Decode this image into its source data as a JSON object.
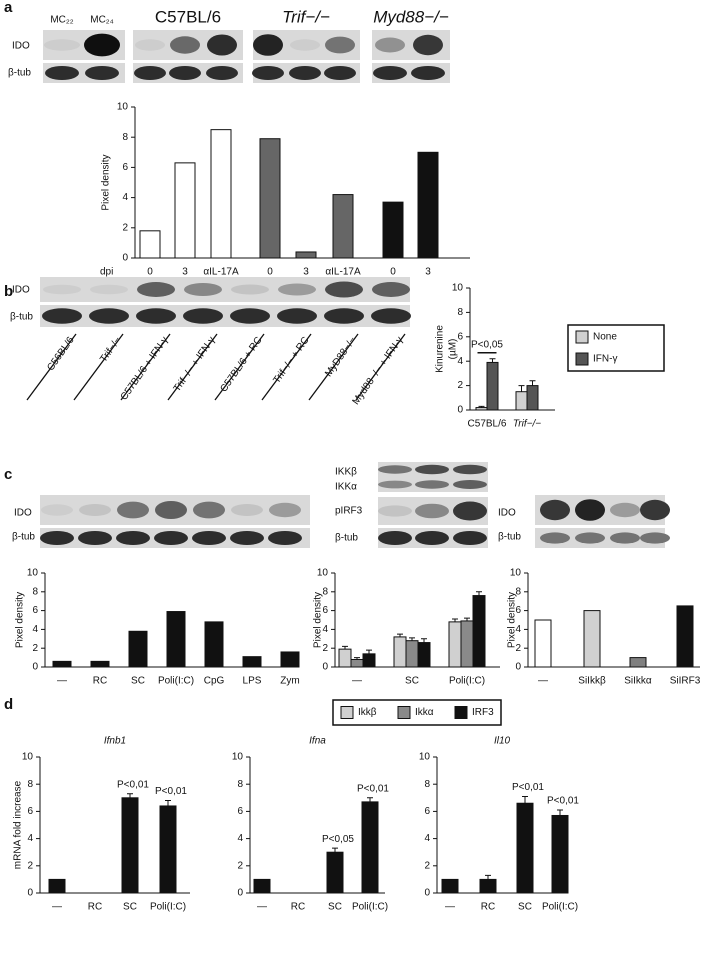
{
  "panels": [
    "a",
    "b",
    "c",
    "d"
  ],
  "blots": {
    "a": {
      "lanes": [
        "MC₂₂",
        "MC₂₄"
      ],
      "rows": [
        "IDO",
        "β-tub"
      ]
    },
    "b": {
      "rows": [
        "IDO",
        "β-tub"
      ],
      "lanes": [
        "C56BL/6",
        "Trif−/−",
        "C57BL/6 + IFN-γ",
        "Trif−/− + IFN-γ",
        "C57BL/6 + RC",
        "Trif−/− + RC",
        "MyD88−/−",
        "Myd88−/− + IFN-γ"
      ]
    },
    "c": {
      "ido_blot": [
        "IDO",
        "β-tub"
      ],
      "ikk_blot": [
        "IKKβ",
        "IKKα",
        "pIRF3",
        "β-tub"
      ],
      "si_blot": [
        "IDO",
        "β-tub"
      ]
    }
  },
  "chart_data": [
    {
      "type": "bar",
      "ylabel": "Pixel density",
      "xlabel": "dpi",
      "categories": [
        "0",
        "3",
        "αIL-17A",
        "0",
        "3",
        "αIL-17A",
        "0",
        "3"
      ],
      "series": [
        {
          "name": "C57BL/6",
          "color": "#ffffff",
          "values": [
            1.8,
            6.3,
            8.5,
            null,
            null,
            null,
            null,
            null
          ]
        },
        {
          "name": "Trif−/−",
          "color": "#666666",
          "values": [
            null,
            null,
            null,
            7.9,
            0.4,
            4.2,
            null,
            null
          ]
        },
        {
          "name": "Myd88−/−",
          "color": "#111111",
          "values": [
            null,
            null,
            null,
            null,
            null,
            null,
            3.7,
            7.0
          ]
        }
      ],
      "ylim": [
        0,
        10
      ],
      "yticks": [
        0,
        2,
        4,
        6,
        8,
        10
      ]
    },
    {
      "type": "bar",
      "ylabel": "Kinurenine",
      "ylabel_unit": "(µM)",
      "categories": [
        "C57BL/6",
        "Trif−/−"
      ],
      "series": [
        {
          "name": "None",
          "color": "#d0d0d0",
          "values": [
            0.2,
            1.5
          ],
          "errors": [
            0.1,
            0.5
          ]
        },
        {
          "name": "IFN-γ",
          "color": "#555555",
          "values": [
            3.9,
            2.0
          ],
          "errors": [
            0.3,
            0.4
          ]
        }
      ],
      "annotation": "P<0,05",
      "legend": "right",
      "ylim": [
        0,
        10
      ],
      "yticks": [
        0,
        2,
        4,
        6,
        8,
        10
      ]
    },
    {
      "type": "bar",
      "ylabel": "Pixel density",
      "categories": [
        "—",
        "RC",
        "SC",
        "Poli(I:C)",
        "CpG",
        "LPS",
        "Zym"
      ],
      "values": [
        0.6,
        0.6,
        3.8,
        5.9,
        4.8,
        1.1,
        1.6
      ],
      "color": "#111111",
      "ylim": [
        0,
        10
      ],
      "yticks": [
        0,
        2,
        4,
        6,
        8,
        10
      ]
    },
    {
      "type": "bar",
      "ylabel": "Pixel density",
      "categories": [
        "—",
        "SC",
        "Poli(I:C)"
      ],
      "series": [
        {
          "name": "Ikkβ",
          "color": "#d0d0d0",
          "values": [
            1.9,
            3.2,
            4.8
          ],
          "errors": [
            0.3,
            0.3,
            0.3
          ]
        },
        {
          "name": "Ikkα",
          "color": "#8a8a8a",
          "values": [
            0.8,
            2.8,
            4.9
          ],
          "errors": [
            0.2,
            0.3,
            0.3
          ]
        },
        {
          "name": "IRF3",
          "color": "#111111",
          "values": [
            1.4,
            2.6,
            7.6
          ],
          "errors": [
            0.4,
            0.4,
            0.4
          ]
        }
      ],
      "legend": "bottom",
      "ylim": [
        0,
        10
      ],
      "yticks": [
        0,
        2,
        4,
        6,
        8,
        10
      ]
    },
    {
      "type": "bar",
      "ylabel": "Pixel density",
      "categories": [
        "—",
        "SiIkkβ",
        "SiIkkα",
        "SiIRF3"
      ],
      "values": [
        5.0,
        6.0,
        1.0,
        6.5
      ],
      "colors": [
        "#ffffff",
        "#d0d0d0",
        "#808080",
        "#111111"
      ],
      "ylim": [
        0,
        10
      ],
      "yticks": [
        0,
        2,
        4,
        6,
        8,
        10
      ]
    },
    {
      "type": "bar",
      "title": "Ifnb1",
      "ylabel": "mRNA fold increase",
      "categories": [
        "—",
        "RC",
        "SC",
        "Poli(I:C)"
      ],
      "values": [
        1.0,
        0,
        7.0,
        6.4
      ],
      "errors": [
        0,
        0,
        0.3,
        0.4
      ],
      "color": "#111111",
      "annotations": [
        null,
        null,
        "P<0,01",
        "P<0,01"
      ],
      "ylim": [
        0,
        10
      ],
      "yticks": [
        0,
        2,
        4,
        6,
        8,
        10
      ]
    },
    {
      "type": "bar",
      "title": "Ifna",
      "categories": [
        "—",
        "RC",
        "SC",
        "Poli(I:C)"
      ],
      "values": [
        1.0,
        0,
        3.0,
        6.7
      ],
      "errors": [
        0,
        0,
        0.3,
        0.3
      ],
      "color": "#111111",
      "annotations": [
        null,
        null,
        "P<0,05",
        "P<0,01"
      ],
      "ylim": [
        0,
        10
      ],
      "yticks": [
        0,
        2,
        4,
        6,
        8,
        10
      ]
    },
    {
      "type": "bar",
      "title": "Il10",
      "categories": [
        "—",
        "RC",
        "SC",
        "Poli(I:C)"
      ],
      "values": [
        1.0,
        1.0,
        6.6,
        5.7
      ],
      "errors": [
        0,
        0.3,
        0.5,
        0.4
      ],
      "color": "#111111",
      "annotations": [
        null,
        null,
        "P<0,01",
        "P<0,01"
      ],
      "ylim": [
        0,
        10
      ],
      "yticks": [
        0,
        2,
        4,
        6,
        8,
        10
      ]
    }
  ]
}
